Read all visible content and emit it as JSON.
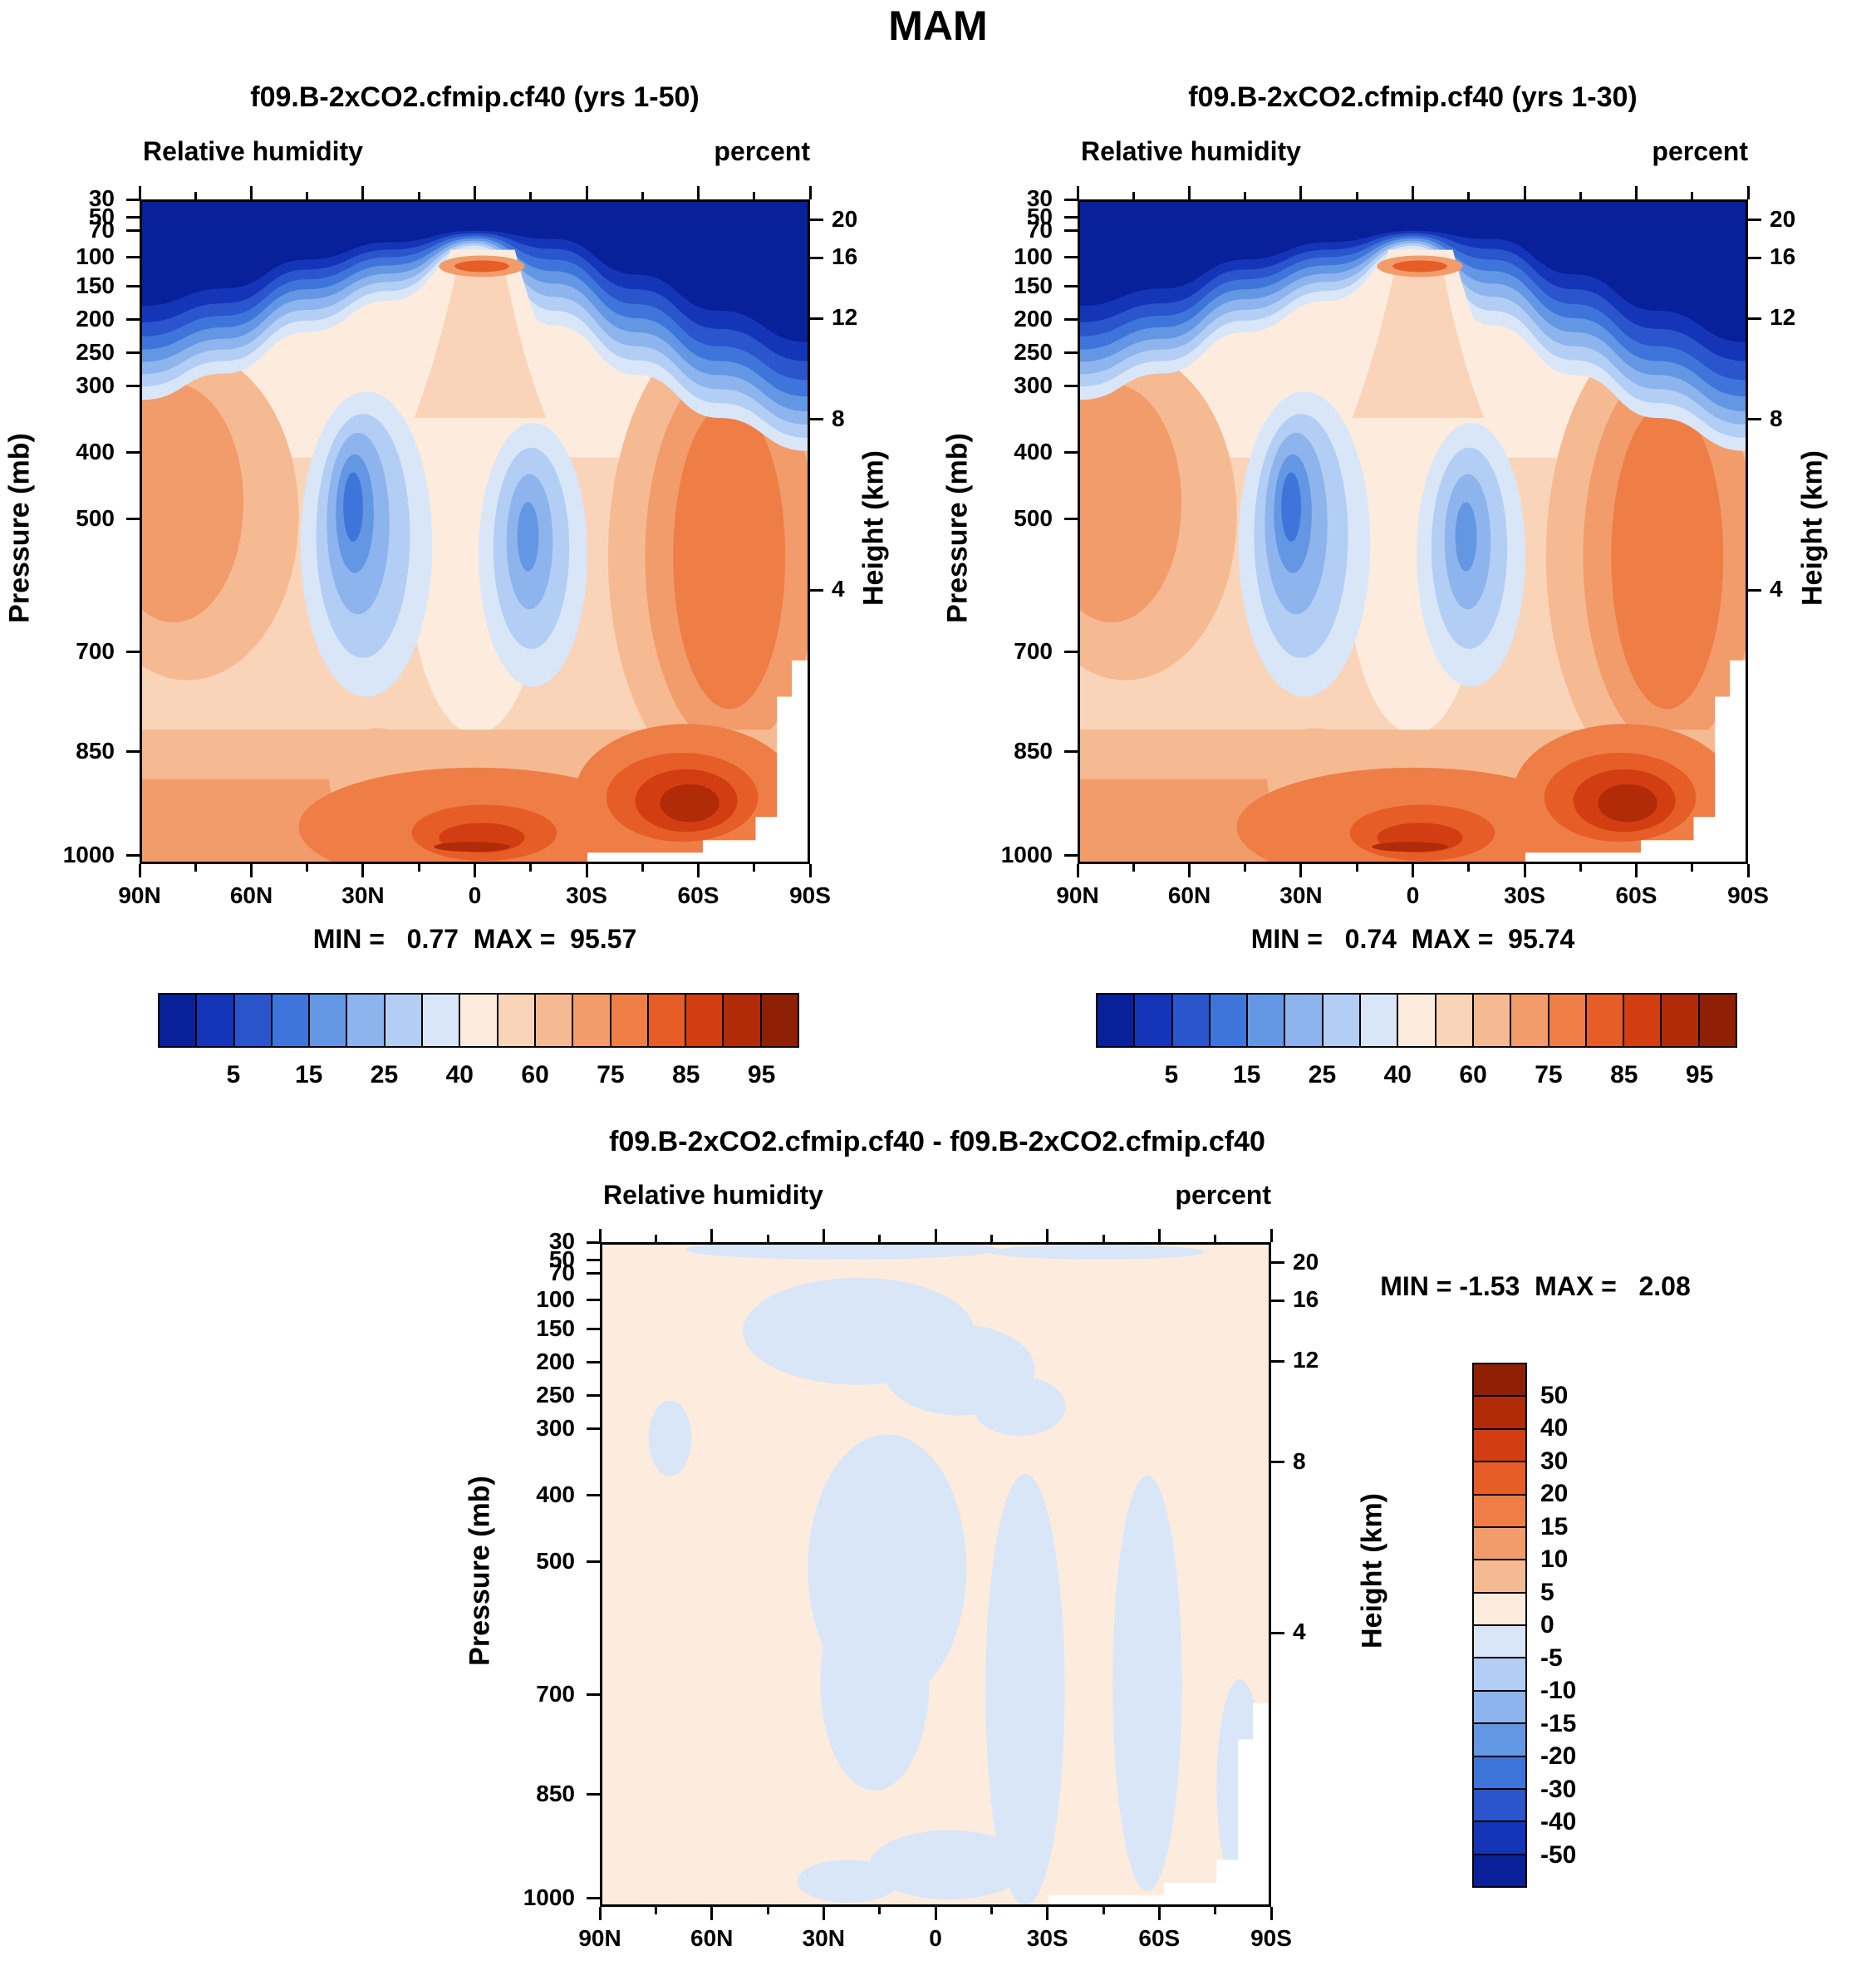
{
  "title": "MAM",
  "axes": {
    "pressure_ticks": [
      {
        "label": "30",
        "pos": 0.0
      },
      {
        "label": "50",
        "pos": 0.027
      },
      {
        "label": "70",
        "pos": 0.047
      },
      {
        "label": "100",
        "pos": 0.087
      },
      {
        "label": "150",
        "pos": 0.131
      },
      {
        "label": "200",
        "pos": 0.181
      },
      {
        "label": "250",
        "pos": 0.231
      },
      {
        "label": "300",
        "pos": 0.281
      },
      {
        "label": "400",
        "pos": 0.381
      },
      {
        "label": "500",
        "pos": 0.481
      },
      {
        "label": "700",
        "pos": 0.681
      },
      {
        "label": "850",
        "pos": 0.831
      },
      {
        "label": "1000",
        "pos": 0.987
      }
    ],
    "height_ticks": [
      {
        "label": "20",
        "pos": 0.031
      },
      {
        "label": "16",
        "pos": 0.088
      },
      {
        "label": "12",
        "pos": 0.179
      },
      {
        "label": "8",
        "pos": 0.331
      },
      {
        "label": "4",
        "pos": 0.588
      }
    ],
    "lat_ticks": [
      {
        "label": "90N",
        "pos": 0
      },
      {
        "label": "60N",
        "pos": 0.1667
      },
      {
        "label": "30N",
        "pos": 0.3333
      },
      {
        "label": "0",
        "pos": 0.5
      },
      {
        "label": "30S",
        "pos": 0.6667
      },
      {
        "label": "60S",
        "pos": 0.8333
      },
      {
        "label": "90S",
        "pos": 1
      }
    ]
  },
  "chart_data": [
    {
      "type": "heatmap",
      "title": "f09.B-2xCO2.cfmip.cf40 (yrs 1-50)",
      "field_label": "Relative humidity",
      "units_label": "percent",
      "y_left_label": "Pressure (mb)",
      "y_right_label": "Height (km)",
      "min": 0.77,
      "max": 95.57,
      "minmax_text": "MIN =   0.77  MAX =  95.57",
      "colorbar_labels": [
        "5",
        "15",
        "25",
        "40",
        "60",
        "75",
        "85",
        "95"
      ],
      "palette": [
        "#08209a",
        "#1535b8",
        "#2a55cc",
        "#3f75da",
        "#6397e4",
        "#8db4ec",
        "#b3cef4",
        "#d8e6f8",
        "#fdecdd",
        "#f9d4b9",
        "#f6ba92",
        "#f29c6b",
        "#ee7e46",
        "#e65d27",
        "#d23e12",
        "#b22b08",
        "#8f1f05"
      ],
      "lat_grid": [
        "90N",
        "60N",
        "30N",
        "0",
        "30S",
        "60S",
        "90S"
      ],
      "pressure_grid": [
        50,
        100,
        200,
        300,
        400,
        500,
        700,
        850,
        1000
      ],
      "values_approx": [
        [
          2,
          2,
          3,
          4,
          3,
          2,
          1
        ],
        [
          4,
          6,
          20,
          72,
          35,
          6,
          3
        ],
        [
          30,
          42,
          45,
          62,
          50,
          38,
          12
        ],
        [
          58,
          52,
          35,
          60,
          42,
          55,
          48
        ],
        [
          65,
          55,
          28,
          52,
          33,
          62,
          58
        ],
        [
          62,
          57,
          30,
          55,
          36,
          66,
          62
        ],
        [
          68,
          62,
          42,
          58,
          48,
          72,
          70
        ],
        [
          74,
          70,
          58,
          74,
          62,
          88,
          78
        ],
        [
          80,
          76,
          72,
          86,
          78,
          91,
          null
        ]
      ]
    },
    {
      "type": "heatmap",
      "title": "f09.B-2xCO2.cfmip.cf40 (yrs 1-30)",
      "field_label": "Relative humidity",
      "units_label": "percent",
      "y_left_label": "Pressure (mb)",
      "y_right_label": "Height (km)",
      "min": 0.74,
      "max": 95.74,
      "minmax_text": "MIN =   0.74  MAX =  95.74",
      "colorbar_labels": [
        "5",
        "15",
        "25",
        "40",
        "60",
        "75",
        "85",
        "95"
      ],
      "palette": [
        "#08209a",
        "#1535b8",
        "#2a55cc",
        "#3f75da",
        "#6397e4",
        "#8db4ec",
        "#b3cef4",
        "#d8e6f8",
        "#fdecdd",
        "#f9d4b9",
        "#f6ba92",
        "#f29c6b",
        "#ee7e46",
        "#e65d27",
        "#d23e12",
        "#b22b08",
        "#8f1f05"
      ],
      "lat_grid": [
        "90N",
        "60N",
        "30N",
        "0",
        "30S",
        "60S",
        "90S"
      ],
      "pressure_grid": [
        50,
        100,
        200,
        300,
        400,
        500,
        700,
        850,
        1000
      ],
      "values_approx": [
        [
          2,
          2,
          3,
          4,
          3,
          2,
          1
        ],
        [
          4,
          6,
          20,
          73,
          35,
          6,
          3
        ],
        [
          30,
          42,
          45,
          62,
          50,
          38,
          12
        ],
        [
          58,
          52,
          35,
          60,
          42,
          55,
          48
        ],
        [
          65,
          55,
          28,
          52,
          33,
          62,
          58
        ],
        [
          62,
          57,
          30,
          55,
          36,
          66,
          62
        ],
        [
          68,
          62,
          42,
          58,
          48,
          72,
          70
        ],
        [
          74,
          70,
          58,
          74,
          62,
          88,
          78
        ],
        [
          80,
          76,
          72,
          86,
          78,
          92,
          null
        ]
      ]
    },
    {
      "type": "heatmap",
      "title": "f09.B-2xCO2.cfmip.cf40 - f09.B-2xCO2.cfmip.cf40",
      "field_label": "Relative humidity",
      "units_label": "percent",
      "y_left_label": "Pressure (mb)",
      "y_right_label": "Height (km)",
      "min": -1.53,
      "max": 2.08,
      "minmax_text": "MIN = -1.53  MAX =   2.08",
      "colorbar_labels": [
        "50",
        "40",
        "30",
        "20",
        "15",
        "10",
        "5",
        "0",
        "-5",
        "-10",
        "-15",
        "-20",
        "-30",
        "-40",
        "-50"
      ],
      "palette": [
        "#8f1f05",
        "#b22b08",
        "#d23e12",
        "#e65d27",
        "#ee7e46",
        "#f29c6b",
        "#f6ba92",
        "#fdecdd",
        "#d8e6f8",
        "#b3cef4",
        "#8db4ec",
        "#6397e4",
        "#3f75da",
        "#2a55cc",
        "#1535b8",
        "#08209a"
      ],
      "lat_grid": [
        "90N",
        "60N",
        "30N",
        "0",
        "30S",
        "60S",
        "90S"
      ],
      "pressure_grid": [
        50,
        100,
        200,
        300,
        400,
        500,
        700,
        850,
        1000
      ],
      "values_approx": [
        [
          0.3,
          0.2,
          -0.2,
          0.1,
          0.2,
          0.3,
          0.2
        ],
        [
          0.5,
          0.4,
          -0.5,
          -0.8,
          0.3,
          0.5,
          0.4
        ],
        [
          0.4,
          0.3,
          -0.6,
          -0.4,
          0.6,
          0.4,
          0.3
        ],
        [
          0.5,
          -0.3,
          -0.9,
          0.8,
          0.5,
          -0.2,
          0.4
        ],
        [
          0.6,
          0.4,
          -1.0,
          0.6,
          -0.4,
          -0.3,
          0.5
        ],
        [
          0.5,
          0.6,
          -0.7,
          0.4,
          -0.5,
          -0.4,
          0.6
        ],
        [
          0.7,
          0.5,
          0.6,
          -0.3,
          0.5,
          -0.5,
          0.8
        ],
        [
          0.6,
          0.8,
          0.5,
          -0.6,
          0.4,
          0.6,
          1.0
        ],
        [
          0.8,
          0.9,
          0.7,
          -0.4,
          0.5,
          0.8,
          null
        ]
      ]
    }
  ]
}
